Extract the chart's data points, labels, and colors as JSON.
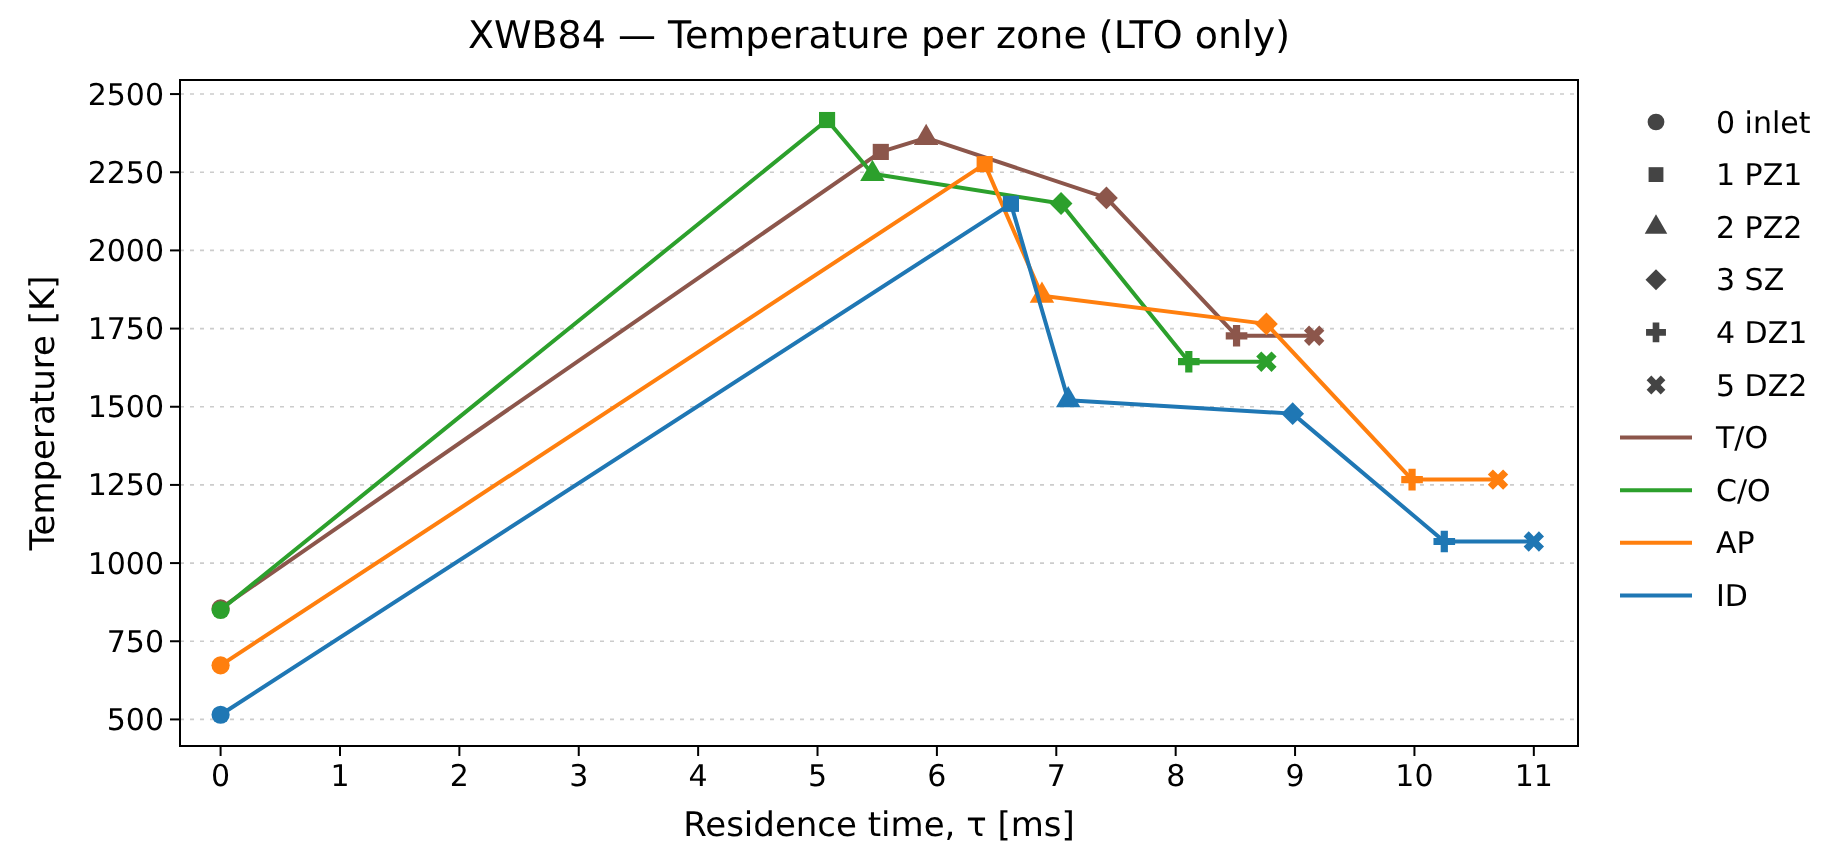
{
  "chart_data": {
    "type": "line",
    "title": "XWB84 — Temperature per zone (LTO only)",
    "xlabel": "Residence time, τ [ms]",
    "ylabel": "Temperature [K]",
    "xlim": [
      -0.34,
      11.37
    ],
    "xticks": [
      0,
      1,
      2,
      3,
      4,
      5,
      6,
      7,
      8,
      9,
      10,
      11
    ],
    "ylim": [
      415,
      2545
    ],
    "yticks": [
      500,
      750,
      1000,
      1250,
      1500,
      1750,
      2000,
      2250,
      2500
    ],
    "grid": "y",
    "legend": "right",
    "marker": [
      "circle",
      "square",
      "triangle",
      "diamond",
      "plus",
      "cross"
    ],
    "annotations": [
      "0 inlet",
      "1 PZ1",
      "2 PZ2",
      "3 SZ",
      "4 DZ1",
      "5 DZ2"
    ],
    "series": [
      {
        "name": "T/O",
        "color": "#8c564b",
        "x": [
          0,
          5.53,
          5.91,
          7.42,
          8.51,
          9.16
        ],
        "values": [
          855,
          2315,
          2360,
          2168,
          1727,
          1727
        ]
      },
      {
        "name": "C/O",
        "color": "#2ca02c",
        "x": [
          0,
          5.08,
          5.46,
          7.04,
          8.11,
          8.76
        ],
        "values": [
          850,
          2417,
          2245,
          2150,
          1644,
          1644
        ]
      },
      {
        "name": "AP",
        "color": "#ff7f0e",
        "x": [
          0,
          6.4,
          6.88,
          8.76,
          9.98,
          10.7
        ],
        "values": [
          673,
          2276,
          1855,
          1765,
          1267,
          1267
        ]
      },
      {
        "name": "ID",
        "color": "#1f77b4",
        "x": [
          0,
          6.62,
          7.1,
          8.98,
          10.25,
          11.0
        ],
        "values": [
          515,
          2149,
          1521,
          1478,
          1069,
          1069
        ]
      }
    ]
  }
}
